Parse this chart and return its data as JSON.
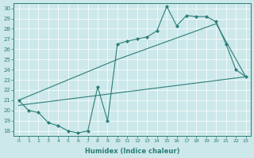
{
  "xlabel": "Humidex (Indice chaleur)",
  "bg_color": "#cce8ea",
  "line_color": "#2d7d78",
  "xlim": [
    -0.5,
    23.5
  ],
  "ylim": [
    17.5,
    30.5
  ],
  "xticks": [
    0,
    1,
    2,
    3,
    4,
    5,
    6,
    7,
    8,
    9,
    10,
    11,
    12,
    13,
    14,
    15,
    16,
    17,
    18,
    19,
    20,
    21,
    22,
    23
  ],
  "yticks": [
    18,
    19,
    20,
    21,
    22,
    23,
    24,
    25,
    26,
    27,
    28,
    29,
    30
  ],
  "zigzag": {
    "x": [
      0,
      1,
      2,
      3,
      4,
      5,
      6,
      7,
      8,
      9,
      10,
      11,
      12,
      13,
      14,
      15,
      16,
      17,
      18,
      19,
      20,
      21,
      22,
      23
    ],
    "y": [
      21.0,
      20.0,
      19.8,
      18.8,
      18.5,
      18.0,
      17.8,
      18.0,
      22.3,
      19.0,
      26.5,
      26.8,
      27.0,
      27.2,
      27.8,
      30.2,
      28.3,
      29.3,
      29.2,
      29.2,
      28.7,
      26.5,
      24.0,
      23.3
    ]
  },
  "upper_diag": {
    "x": [
      0,
      10,
      20,
      23
    ],
    "y": [
      21.0,
      25.0,
      28.5,
      23.3
    ]
  },
  "lower_diag": {
    "x": [
      0,
      23
    ],
    "y": [
      20.5,
      23.3
    ]
  }
}
